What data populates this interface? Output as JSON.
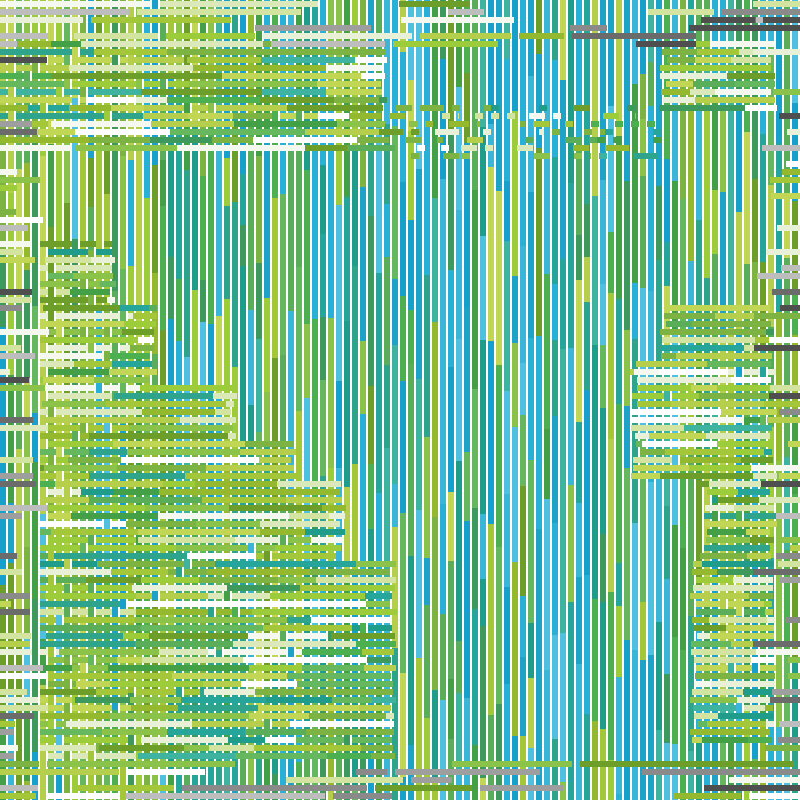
{
  "artwork": {
    "kind": "generative-weave",
    "palette": {
      "yellow_greens": [
        "#8bc34a",
        "#9ccc3a",
        "#a4c639",
        "#7cb342",
        "#b5cf4d",
        "#c0d654",
        "#94b82e",
        "#6e9e2a"
      ],
      "greens": [
        "#4caf50",
        "#43a047",
        "#5aae5a",
        "#3d9a5c",
        "#66b85e"
      ],
      "teals": [
        "#26a69a",
        "#2fa48c",
        "#3db3a0",
        "#1f9c8a"
      ],
      "blues": [
        "#1fa2c8",
        "#29b0d6",
        "#18a0cc",
        "#3bb5d8",
        "#4fc0e0"
      ],
      "pale": [
        "#f4f8ee",
        "#e8f0d8",
        "#dbe8b9",
        "#d2e4a0",
        "#ffffff"
      ],
      "greys": [
        "#6b6b6b",
        "#8a8a8a",
        "#4f4f4f",
        "#9e9e9e",
        "#bdbdbd"
      ]
    }
  }
}
